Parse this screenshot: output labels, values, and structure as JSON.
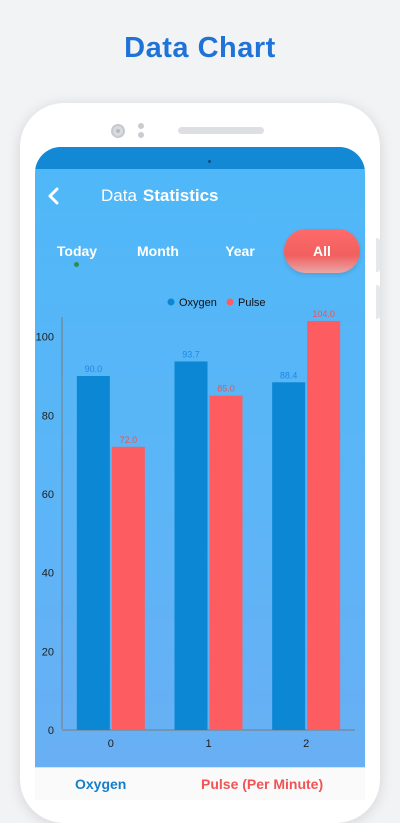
{
  "promo": {
    "title": "Data Chart"
  },
  "header": {
    "title_part1": "Data",
    "title_part2": "Statistics"
  },
  "tabs": [
    {
      "label": "Today",
      "active": false
    },
    {
      "label": "Month",
      "active": false
    },
    {
      "label": "Year",
      "active": false
    },
    {
      "label": "All",
      "active": true
    }
  ],
  "colors": {
    "oxygen": "#0b87d3",
    "pulse": "#fd5c60",
    "oxygen_label": "#1e88e5",
    "pulse_label": "#ef5350",
    "tab_active": "#f45f5f"
  },
  "icons": {
    "back": "chevron-left-icon"
  },
  "chart_data": {
    "type": "bar",
    "categories": [
      "0",
      "1",
      "2"
    ],
    "series": [
      {
        "name": "Oxygen",
        "values": [
          90.0,
          93.7,
          88.4
        ],
        "labels": [
          "90.0",
          "93.7",
          "88.4"
        ]
      },
      {
        "name": "Pulse",
        "values": [
          72.0,
          85.0,
          104.0
        ],
        "labels": [
          "72.0",
          "85.0",
          "104.0"
        ]
      }
    ],
    "yticks": [
      "0",
      "20",
      "40",
      "60",
      "80",
      "100"
    ],
    "ylim": [
      0,
      105
    ],
    "legend_position": "top-center",
    "grid": false
  },
  "bottom_bar": {
    "oxygen_label": "Oxygen",
    "pulse_label": "Pulse (Per Minute)"
  }
}
